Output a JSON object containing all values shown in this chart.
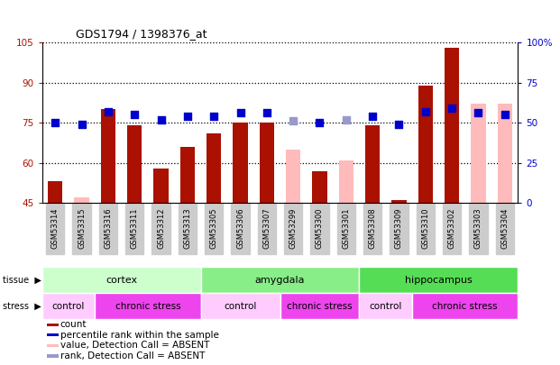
{
  "title": "GDS1794 / 1398376_at",
  "samples": [
    "GSM53314",
    "GSM53315",
    "GSM53316",
    "GSM53311",
    "GSM53312",
    "GSM53313",
    "GSM53305",
    "GSM53306",
    "GSM53307",
    "GSM53299",
    "GSM53300",
    "GSM53301",
    "GSM53308",
    "GSM53309",
    "GSM53310",
    "GSM53302",
    "GSM53303",
    "GSM53304"
  ],
  "bar_values": [
    53,
    null,
    80,
    74,
    58,
    66,
    71,
    75,
    75,
    null,
    57,
    null,
    74,
    46,
    89,
    103,
    null,
    null
  ],
  "bar_absent": [
    null,
    47,
    null,
    null,
    null,
    null,
    null,
    null,
    null,
    65,
    null,
    61,
    null,
    null,
    null,
    null,
    82,
    82
  ],
  "bar_color": "#aa1100",
  "bar_absent_color": "#ffbbbb",
  "dot_values": [
    50,
    49,
    57,
    55,
    52,
    54,
    54,
    56,
    56,
    null,
    50,
    null,
    54,
    49,
    57,
    59,
    56,
    55
  ],
  "dot_absent": [
    null,
    null,
    null,
    null,
    null,
    null,
    null,
    null,
    null,
    51,
    null,
    52,
    null,
    null,
    null,
    null,
    null,
    null
  ],
  "dot_color": "#0000cc",
  "dot_absent_color": "#9999cc",
  "ylim": [
    45,
    105
  ],
  "yticks": [
    45,
    60,
    75,
    90,
    105
  ],
  "ytick_labels": [
    "45",
    "60",
    "75",
    "90",
    "105"
  ],
  "y2lim": [
    0,
    100
  ],
  "y2ticks": [
    0,
    25,
    50,
    75,
    100
  ],
  "y2tick_labels": [
    "0",
    "25",
    "50",
    "75",
    "100%"
  ],
  "tissue_groups": [
    {
      "label": "cortex",
      "start": 0,
      "end": 6,
      "color": "#ccffcc"
    },
    {
      "label": "amygdala",
      "start": 6,
      "end": 12,
      "color": "#88ee88"
    },
    {
      "label": "hippocampus",
      "start": 12,
      "end": 18,
      "color": "#55dd55"
    }
  ],
  "stress_groups": [
    {
      "label": "control",
      "start": 0,
      "end": 2,
      "color": "#ffccff"
    },
    {
      "label": "chronic stress",
      "start": 2,
      "end": 6,
      "color": "#ee44ee"
    },
    {
      "label": "control",
      "start": 6,
      "end": 9,
      "color": "#ffccff"
    },
    {
      "label": "chronic stress",
      "start": 9,
      "end": 12,
      "color": "#ee44ee"
    },
    {
      "label": "control",
      "start": 12,
      "end": 14,
      "color": "#ffccff"
    },
    {
      "label": "chronic stress",
      "start": 14,
      "end": 18,
      "color": "#ee44ee"
    }
  ],
  "legend_items": [
    {
      "label": "count",
      "color": "#aa1100"
    },
    {
      "label": "percentile rank within the sample",
      "color": "#0000cc"
    },
    {
      "label": "value, Detection Call = ABSENT",
      "color": "#ffbbbb"
    },
    {
      "label": "rank, Detection Call = ABSENT",
      "color": "#9999cc"
    }
  ],
  "bar_width": 0.55,
  "dot_size": 30,
  "bg_color": "#ffffff",
  "plot_bg": "#ffffff",
  "grid_color": "#000000",
  "xticklabel_bg": "#cccccc"
}
